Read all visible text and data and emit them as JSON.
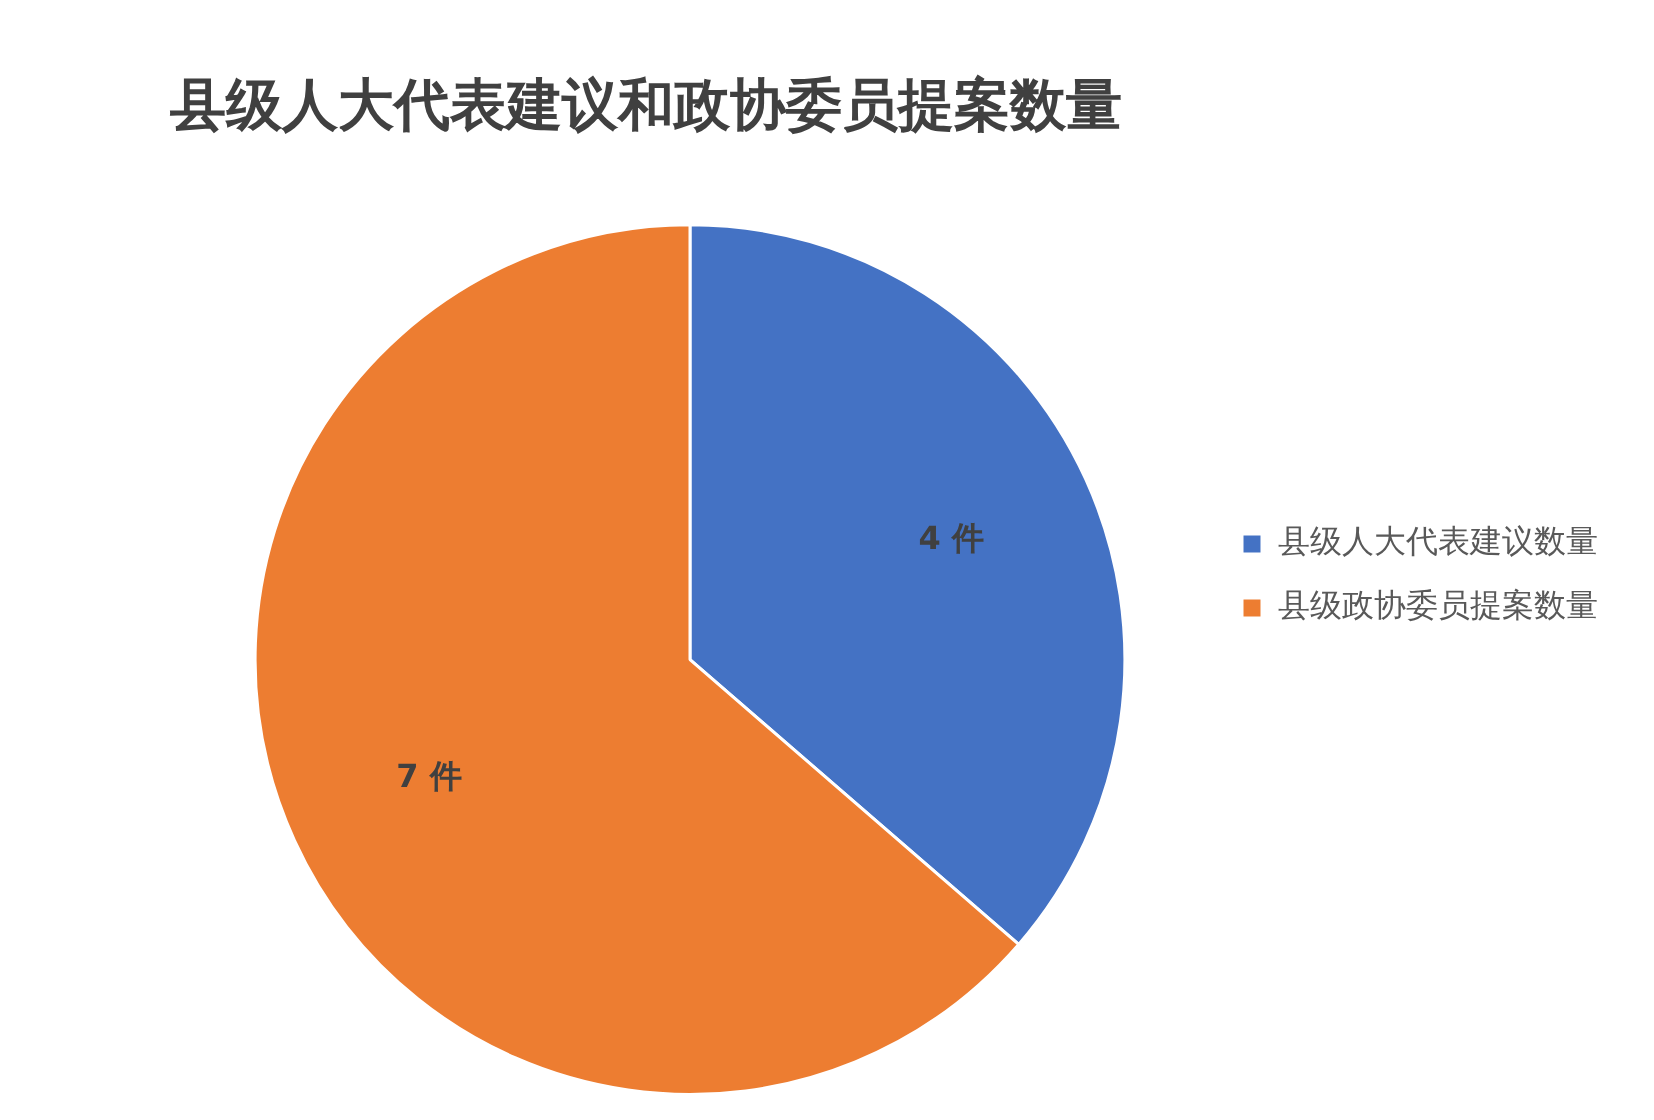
{
  "chart_data": {
    "type": "pie",
    "title": "县级人大代表建议和政协委员提案数量",
    "categories": [
      "县级人大代表建议数量",
      "县级政协委员提案数量"
    ],
    "values": [
      4,
      7
    ],
    "colors": [
      "#4472c4",
      "#ed7d31"
    ],
    "value_labels": [
      "4 件",
      "7 件"
    ],
    "legend": "right"
  }
}
